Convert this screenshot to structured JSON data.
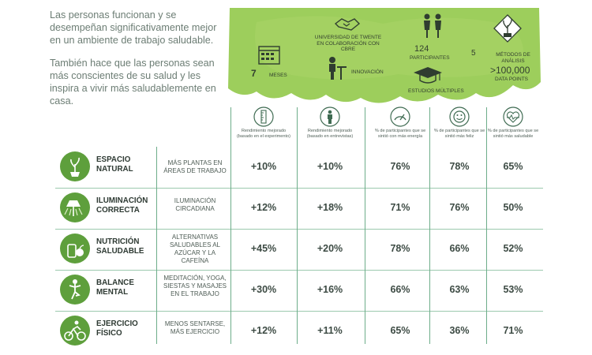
{
  "intro": {
    "paragraph1": "Las personas funcionan y se desempeñan significativamente mejor en un ambiente de trabajo saludable.",
    "paragraph2": "También hace que las personas sean más conscientes de su salud y les inspira a vivir más saludablemente en casa."
  },
  "banner": {
    "months_value": "7",
    "months_label": "MESES",
    "university": "UNIVERSIDAD DE TWENTE EN COLABORACIÓN CON CBRE",
    "participants_value": "124",
    "participants_label": "PARTICIPANTES",
    "methods_value": "5",
    "methods_label": "MÉTODOS DE ANÁLISIS",
    "innovation_label": "INNOVACIÓN",
    "studies_label": "ESTUDIOS MÚLTIPLES",
    "datapoints_value": ">100,000",
    "datapoints_label": "DATA POINTS"
  },
  "colors": {
    "accent_green": "#5e9f3c",
    "line_teal": "#6dad8a",
    "banner_green": "#8cc63f"
  },
  "icons": [
    "calendar-icon",
    "handshake-icon",
    "people-icon",
    "plant-icon",
    "worker-icon",
    "graduation-cap-icon",
    "ruler-icon",
    "person-icon",
    "gauge-icon",
    "smiley-icon",
    "heart-pulse-icon"
  ],
  "chart_data": {
    "type": "table",
    "columns": [
      "Rendimiento mejorado (basado en el experimento)",
      "Rendimiento mejorado (basado en entrevistas)",
      "% de participantes que se sintió con más energía",
      "% de participantes que se sintió más feliz",
      "% de participantes que se sintió más saludable"
    ],
    "rows": [
      {
        "category": "ESPACIO NATURAL",
        "description": "MÁS PLANTAS EN ÁREAS DE TRABAJO",
        "values": [
          "+10%",
          "+10%",
          "76%",
          "78%",
          "65%"
        ]
      },
      {
        "category": "ILUMINACIÓN CORRECTA",
        "description": "ILUMINACIÓN CIRCADIANA",
        "values": [
          "+12%",
          "+18%",
          "71%",
          "76%",
          "50%"
        ]
      },
      {
        "category": "NUTRICIÓN SALUDABLE",
        "description": "ALTERNATIVAS SALUDABLES AL AZÚCAR Y LA CAFEÍNA",
        "values": [
          "+45%",
          "+20%",
          "78%",
          "66%",
          "52%"
        ]
      },
      {
        "category": "BALANCE MENTAL",
        "description": "MEDITACIÓN, YOGA, SIESTAS Y MASAJES EN EL TRABAJO",
        "values": [
          "+30%",
          "+16%",
          "66%",
          "63%",
          "53%"
        ]
      },
      {
        "category": "EJERCICIO FÍSICO",
        "description": "MENOS SENTARSE, MÁS EJERCICIO",
        "values": [
          "+12%",
          "+11%",
          "65%",
          "36%",
          "71%"
        ]
      }
    ]
  }
}
